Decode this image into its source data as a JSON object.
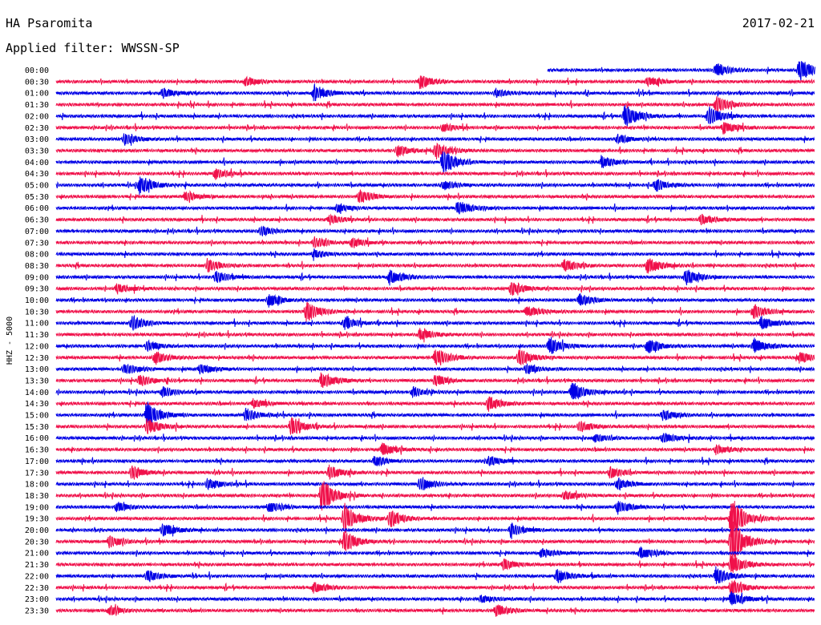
{
  "header": {
    "station": "HA Psaromita",
    "date": "2017-02-21",
    "filter": "Applied filter: WWSSN-SP"
  },
  "chart_data": {
    "type": "line",
    "title": "HA Psaromita",
    "subtitle": "Applied filter: WWSSN-SP",
    "ylabel": "HHZ - 5000",
    "row_labels": [
      "00:00",
      "00:30",
      "01:00",
      "01:30",
      "02:00",
      "02:30",
      "03:00",
      "03:30",
      "04:00",
      "04:30",
      "05:00",
      "05:30",
      "06:00",
      "06:30",
      "07:00",
      "07:30",
      "08:00",
      "08:30",
      "09:00",
      "09:30",
      "10:00",
      "10:30",
      "11:00",
      "11:30",
      "12:00",
      "12:30",
      "13:00",
      "13:30",
      "14:00",
      "14:30",
      "15:00",
      "15:30",
      "16:00",
      "16:30",
      "17:00",
      "17:30",
      "18:00",
      "18:30",
      "19:00",
      "19:30",
      "20:00",
      "20:30",
      "21:00",
      "21:30",
      "22:00",
      "22:30",
      "23:00",
      "23:30"
    ],
    "colors": [
      "#0000e6",
      "#f0104a"
    ],
    "events": [
      {
        "row": 0,
        "pos": 0.87,
        "amp": 9
      },
      {
        "row": 0,
        "pos": 0.98,
        "amp": 16
      },
      {
        "row": 1,
        "pos": 0.25,
        "amp": 6
      },
      {
        "row": 1,
        "pos": 0.48,
        "amp": 9
      },
      {
        "row": 1,
        "pos": 0.78,
        "amp": 6
      },
      {
        "row": 2,
        "pos": 0.34,
        "amp": 11
      },
      {
        "row": 2,
        "pos": 0.14,
        "amp": 6
      },
      {
        "row": 2,
        "pos": 0.58,
        "amp": 5
      },
      {
        "row": 3,
        "pos": 0.87,
        "amp": 12
      },
      {
        "row": 4,
        "pos": 0.75,
        "amp": 15
      },
      {
        "row": 4,
        "pos": 0.86,
        "amp": 13
      },
      {
        "row": 5,
        "pos": 0.88,
        "amp": 8
      },
      {
        "row": 5,
        "pos": 0.51,
        "amp": 5
      },
      {
        "row": 6,
        "pos": 0.09,
        "amp": 7
      },
      {
        "row": 6,
        "pos": 0.74,
        "amp": 6
      },
      {
        "row": 7,
        "pos": 0.45,
        "amp": 8
      },
      {
        "row": 7,
        "pos": 0.5,
        "amp": 10
      },
      {
        "row": 8,
        "pos": 0.51,
        "amp": 16
      },
      {
        "row": 8,
        "pos": 0.72,
        "amp": 7
      },
      {
        "row": 9,
        "pos": 0.21,
        "amp": 7
      },
      {
        "row": 10,
        "pos": 0.11,
        "amp": 13
      },
      {
        "row": 10,
        "pos": 0.79,
        "amp": 8
      },
      {
        "row": 10,
        "pos": 0.51,
        "amp": 6
      },
      {
        "row": 11,
        "pos": 0.4,
        "amp": 9
      },
      {
        "row": 11,
        "pos": 0.17,
        "amp": 6
      },
      {
        "row": 12,
        "pos": 0.53,
        "amp": 10
      },
      {
        "row": 12,
        "pos": 0.37,
        "amp": 5
      },
      {
        "row": 13,
        "pos": 0.36,
        "amp": 6
      },
      {
        "row": 13,
        "pos": 0.85,
        "amp": 7
      },
      {
        "row": 14,
        "pos": 0.27,
        "amp": 6
      },
      {
        "row": 15,
        "pos": 0.34,
        "amp": 7
      },
      {
        "row": 15,
        "pos": 0.39,
        "amp": 6
      },
      {
        "row": 16,
        "pos": 0.34,
        "amp": 5
      },
      {
        "row": 17,
        "pos": 0.2,
        "amp": 8
      },
      {
        "row": 17,
        "pos": 0.67,
        "amp": 9
      },
      {
        "row": 17,
        "pos": 0.78,
        "amp": 11
      },
      {
        "row": 18,
        "pos": 0.44,
        "amp": 11
      },
      {
        "row": 18,
        "pos": 0.83,
        "amp": 12
      },
      {
        "row": 18,
        "pos": 0.21,
        "amp": 8
      },
      {
        "row": 19,
        "pos": 0.6,
        "amp": 9
      },
      {
        "row": 19,
        "pos": 0.08,
        "amp": 6
      },
      {
        "row": 20,
        "pos": 0.28,
        "amp": 8
      },
      {
        "row": 20,
        "pos": 0.69,
        "amp": 8
      },
      {
        "row": 21,
        "pos": 0.33,
        "amp": 13
      },
      {
        "row": 21,
        "pos": 0.62,
        "amp": 8
      },
      {
        "row": 21,
        "pos": 0.92,
        "amp": 9
      },
      {
        "row": 22,
        "pos": 0.1,
        "amp": 10
      },
      {
        "row": 22,
        "pos": 0.38,
        "amp": 8
      },
      {
        "row": 22,
        "pos": 0.93,
        "amp": 9
      },
      {
        "row": 23,
        "pos": 0.48,
        "amp": 8
      },
      {
        "row": 24,
        "pos": 0.12,
        "amp": 7
      },
      {
        "row": 24,
        "pos": 0.65,
        "amp": 12
      },
      {
        "row": 24,
        "pos": 0.78,
        "amp": 9
      },
      {
        "row": 24,
        "pos": 0.92,
        "amp": 10
      },
      {
        "row": 25,
        "pos": 0.13,
        "amp": 9
      },
      {
        "row": 25,
        "pos": 0.5,
        "amp": 13
      },
      {
        "row": 25,
        "pos": 0.61,
        "amp": 11
      },
      {
        "row": 25,
        "pos": 0.98,
        "amp": 7
      },
      {
        "row": 26,
        "pos": 0.09,
        "amp": 7
      },
      {
        "row": 26,
        "pos": 0.19,
        "amp": 7
      },
      {
        "row": 26,
        "pos": 0.62,
        "amp": 6
      },
      {
        "row": 27,
        "pos": 0.35,
        "amp": 11
      },
      {
        "row": 27,
        "pos": 0.5,
        "amp": 8
      },
      {
        "row": 27,
        "pos": 0.11,
        "amp": 7
      },
      {
        "row": 28,
        "pos": 0.68,
        "amp": 13
      },
      {
        "row": 28,
        "pos": 0.14,
        "amp": 7
      },
      {
        "row": 28,
        "pos": 0.47,
        "amp": 6
      },
      {
        "row": 29,
        "pos": 0.57,
        "amp": 9
      },
      {
        "row": 29,
        "pos": 0.26,
        "amp": 6
      },
      {
        "row": 30,
        "pos": 0.12,
        "amp": 18
      },
      {
        "row": 30,
        "pos": 0.25,
        "amp": 8
      },
      {
        "row": 30,
        "pos": 0.8,
        "amp": 7
      },
      {
        "row": 31,
        "pos": 0.31,
        "amp": 13
      },
      {
        "row": 31,
        "pos": 0.12,
        "amp": 10
      },
      {
        "row": 31,
        "pos": 0.69,
        "amp": 7
      },
      {
        "row": 32,
        "pos": 0.8,
        "amp": 7
      },
      {
        "row": 32,
        "pos": 0.71,
        "amp": 5
      },
      {
        "row": 33,
        "pos": 0.43,
        "amp": 8
      },
      {
        "row": 33,
        "pos": 0.87,
        "amp": 6
      },
      {
        "row": 34,
        "pos": 0.42,
        "amp": 7
      },
      {
        "row": 34,
        "pos": 0.57,
        "amp": 6
      },
      {
        "row": 35,
        "pos": 0.1,
        "amp": 9
      },
      {
        "row": 35,
        "pos": 0.36,
        "amp": 9
      },
      {
        "row": 35,
        "pos": 0.73,
        "amp": 7
      },
      {
        "row": 36,
        "pos": 0.48,
        "amp": 10
      },
      {
        "row": 36,
        "pos": 0.74,
        "amp": 8
      },
      {
        "row": 36,
        "pos": 0.2,
        "amp": 7
      },
      {
        "row": 37,
        "pos": 0.35,
        "amp": 22
      },
      {
        "row": 37,
        "pos": 0.67,
        "amp": 6
      },
      {
        "row": 38,
        "pos": 0.28,
        "amp": 7
      },
      {
        "row": 38,
        "pos": 0.74,
        "amp": 9
      },
      {
        "row": 38,
        "pos": 0.08,
        "amp": 6
      },
      {
        "row": 39,
        "pos": 0.38,
        "amp": 20
      },
      {
        "row": 39,
        "pos": 0.44,
        "amp": 12
      },
      {
        "row": 39,
        "pos": 0.89,
        "amp": 28
      },
      {
        "row": 40,
        "pos": 0.14,
        "amp": 9
      },
      {
        "row": 40,
        "pos": 0.6,
        "amp": 8
      },
      {
        "row": 41,
        "pos": 0.89,
        "amp": 30
      },
      {
        "row": 41,
        "pos": 0.38,
        "amp": 14
      },
      {
        "row": 41,
        "pos": 0.07,
        "amp": 7
      },
      {
        "row": 42,
        "pos": 0.77,
        "amp": 8
      },
      {
        "row": 42,
        "pos": 0.64,
        "amp": 6
      },
      {
        "row": 43,
        "pos": 0.59,
        "amp": 7
      },
      {
        "row": 43,
        "pos": 0.89,
        "amp": 14
      },
      {
        "row": 44,
        "pos": 0.66,
        "amp": 9
      },
      {
        "row": 44,
        "pos": 0.87,
        "amp": 12
      },
      {
        "row": 44,
        "pos": 0.12,
        "amp": 8
      },
      {
        "row": 45,
        "pos": 0.34,
        "amp": 8
      },
      {
        "row": 45,
        "pos": 0.89,
        "amp": 10
      },
      {
        "row": 46,
        "pos": 0.89,
        "amp": 9
      },
      {
        "row": 46,
        "pos": 0.56,
        "amp": 5
      },
      {
        "row": 47,
        "pos": 0.58,
        "amp": 8
      },
      {
        "row": 47,
        "pos": 0.07,
        "amp": 6
      }
    ]
  }
}
